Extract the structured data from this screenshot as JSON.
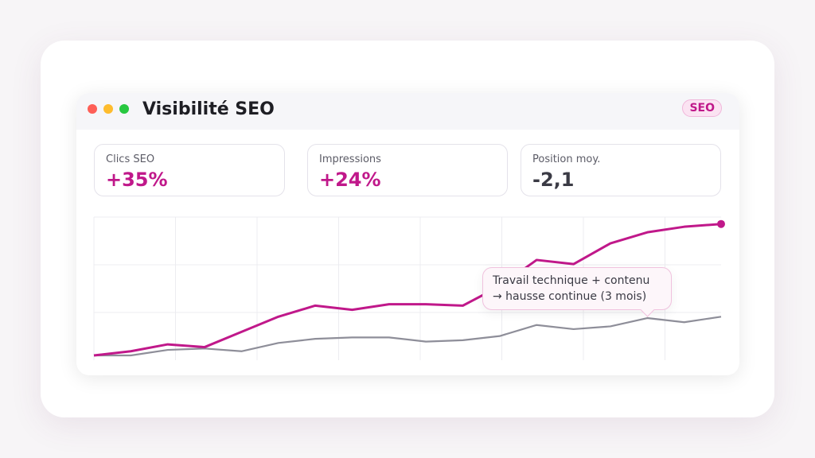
{
  "window": {
    "title": "Visibilité SEO",
    "badge": "SEO",
    "traffic_lights": [
      "#fe5f57",
      "#febc2e",
      "#28c840"
    ]
  },
  "kpis": [
    {
      "label": "Clics SEO",
      "value": "+35%",
      "color": "#c0188a"
    },
    {
      "label": "Impressions",
      "value": "+24%",
      "color": "#c0188a"
    },
    {
      "label": "Position moy.",
      "value": "-2,1",
      "color": "#3b3b45"
    }
  ],
  "annotation": {
    "line1": "Travail technique + contenu",
    "line2": "→ hausse continue (3 mois)"
  },
  "colors": {
    "accent": "#c0188a",
    "secondary": "#8e8e99",
    "grid": "#ececf0"
  },
  "chart_data": {
    "type": "line",
    "title": "Visibilité SEO",
    "xlabel": "",
    "ylabel": "",
    "x": [
      1,
      2,
      3,
      4,
      5,
      6,
      7,
      8,
      9,
      10,
      11,
      12,
      13,
      14,
      15,
      16,
      17,
      18
    ],
    "series": [
      {
        "name": "Clics SEO",
        "color": "#c0188a",
        "values": [
          0,
          3,
          8,
          6,
          17,
          28,
          36,
          33,
          37,
          37,
          36,
          50,
          69,
          66,
          81,
          89,
          93,
          95
        ]
      },
      {
        "name": "Impressions",
        "color": "#8e8e99",
        "values": [
          0,
          0,
          4,
          5,
          3,
          9,
          12,
          13,
          13,
          10,
          11,
          14,
          22,
          19,
          21,
          27,
          24,
          28
        ]
      }
    ],
    "ylim": [
      0,
      100
    ],
    "grid": true,
    "legend": "none",
    "annotations": [
      "Travail technique + contenu → hausse continue (3 mois)"
    ]
  }
}
